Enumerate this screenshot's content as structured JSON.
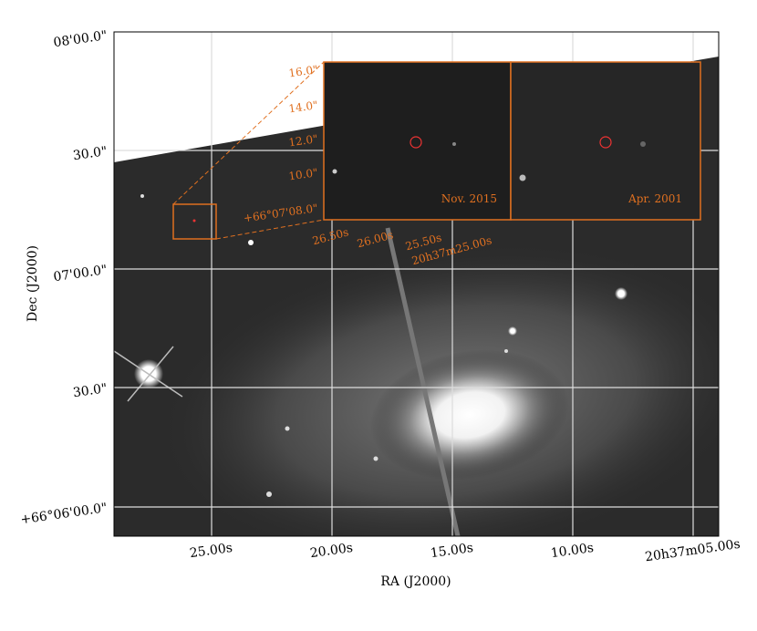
{
  "figure": {
    "x_label": "RA (J2000)",
    "y_label": "Dec (J2000)",
    "x_tick_labels": [
      "25.00s",
      "20.00s",
      "15.00s",
      "10.00s",
      "20h37m05.00s"
    ],
    "y_tick_labels": [
      "+66°06'00.0\"",
      "30.0\"",
      "07'00.0\"",
      "30.0\"",
      "08'00.0\""
    ],
    "inset": {
      "y_tick_labels": [
        "+66°07'08.0\"",
        "10.0\"",
        "12.0\"",
        "14.0\"",
        "16.0\""
      ],
      "x_tick_labels": [
        "26.50s",
        "26.00s",
        "25.50s",
        "20h37m25.00s"
      ],
      "panels": [
        "Nov. 2015",
        "Apr. 2001"
      ]
    }
  }
}
